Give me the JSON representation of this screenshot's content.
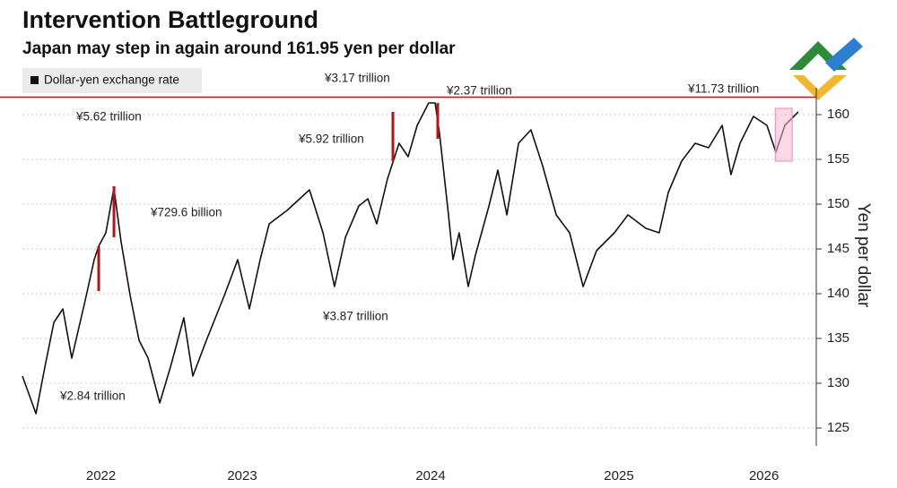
{
  "chart_data": {
    "type": "line",
    "title": "Intervention Battleground",
    "subtitle": "Japan may step in again around 161.95 yen per dollar",
    "y_axis_label": "Yen per dollar",
    "legend": "top-left",
    "grid": true,
    "reference_line": {
      "value": 161.95,
      "color": "#c0141b"
    },
    "xlim": [
      2022.333,
      2026.524
    ],
    "xticks": [
      {
        "value": 2022.75,
        "label": "2022"
      },
      {
        "value": 2023.5,
        "label": "2023"
      },
      {
        "value": 2024.5,
        "label": "2024"
      },
      {
        "value": 2025.5,
        "label": "2025"
      },
      {
        "value": 2026.27,
        "label": "2026"
      }
    ],
    "ylim": [
      123,
      163
    ],
    "yticks": [
      125,
      130,
      135,
      140,
      145,
      150,
      155,
      160
    ],
    "x": [
      2022.333,
      2022.405,
      2022.452,
      2022.5,
      2022.548,
      2022.595,
      2022.667,
      2022.714,
      2022.738,
      2022.776,
      2022.819,
      2022.857,
      2022.905,
      2022.952,
      2023.0,
      2023.062,
      2023.119,
      2023.19,
      2023.238,
      2023.31,
      2023.405,
      2023.476,
      2023.538,
      2023.595,
      2023.643,
      2023.738,
      2023.857,
      2023.929,
      2023.99,
      2024.048,
      2024.119,
      2024.167,
      2024.214,
      2024.271,
      2024.333,
      2024.381,
      2024.429,
      2024.49,
      2024.524,
      2024.548,
      2024.595,
      2024.619,
      2024.652,
      2024.7,
      2024.738,
      2024.81,
      2024.857,
      2024.905,
      2024.967,
      2025.033,
      2025.095,
      2025.167,
      2025.238,
      2025.31,
      2025.381,
      2025.476,
      2025.548,
      2025.643,
      2025.714,
      2025.762,
      2025.833,
      2025.905,
      2025.976,
      2026.048,
      2026.095,
      2026.143,
      2026.214,
      2026.286,
      2026.333,
      2026.381,
      2026.452
    ],
    "series": [
      {
        "name": "Dollar-yen exchange rate",
        "color": "#111111",
        "values": [
          130.8,
          126.6,
          131.8,
          136.8,
          138.3,
          132.8,
          139.3,
          143.8,
          145.3,
          146.8,
          151.8,
          145.8,
          139.8,
          134.8,
          132.8,
          127.8,
          131.8,
          137.3,
          130.8,
          134.8,
          139.8,
          143.8,
          138.3,
          143.8,
          147.8,
          149.3,
          151.6,
          146.8,
          140.8,
          146.3,
          149.8,
          150.6,
          147.8,
          152.8,
          156.8,
          155.3,
          158.8,
          161.3,
          161.3,
          157.8,
          148.8,
          143.8,
          146.8,
          140.8,
          144.3,
          149.8,
          153.8,
          148.8,
          156.8,
          158.3,
          154.3,
          148.8,
          146.8,
          140.8,
          144.8,
          146.8,
          148.8,
          147.3,
          146.8,
          151.3,
          154.8,
          156.8,
          156.3,
          158.8,
          153.3,
          156.8,
          159.8,
          158.8,
          155.8,
          158.8,
          160.3
        ]
      }
    ],
    "intervention_color": "#b0161b",
    "interventions": [
      {
        "x": 2022.738,
        "values": [
          145.3,
          140.3
        ]
      },
      {
        "x": 2022.819,
        "values": [
          152.0,
          146.3
        ]
      },
      {
        "x": 2024.3,
        "values": [
          160.3,
          154.8
        ]
      },
      {
        "x": 2024.538,
        "values": [
          161.3,
          157.3
        ]
      }
    ],
    "highlight_box": {
      "color": "#f7b9d4",
      "xlim": [
        2026.33,
        2026.42
      ],
      "ylim": [
        154.8,
        160.7
      ]
    },
    "annotations": [
      "¥5.62 trillion",
      "¥2.84 trillion",
      "¥729.6 billion",
      "¥3.87 trillion",
      "¥5.92 trillion",
      "¥3.17 trillion",
      "¥2.37 trillion",
      "¥11.73 trillion"
    ]
  }
}
